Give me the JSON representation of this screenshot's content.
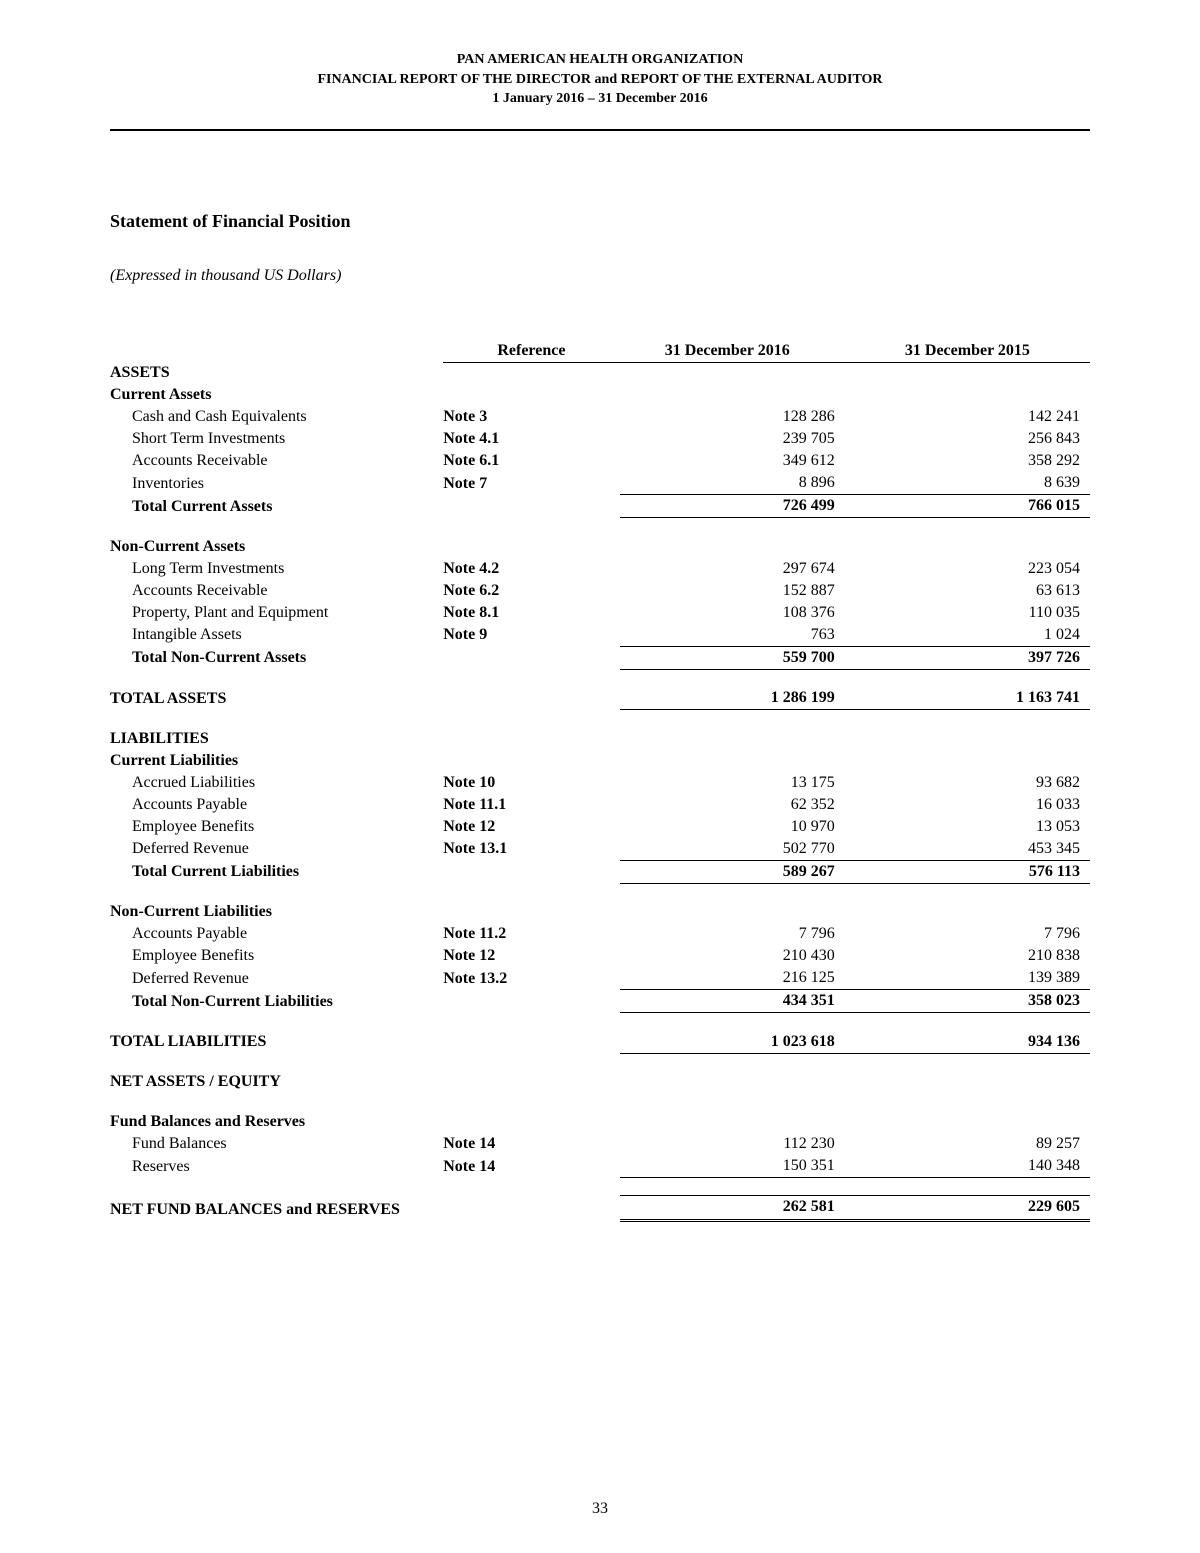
{
  "header": {
    "line1": "PAN AMERICAN HEALTH ORGANIZATION",
    "line2": "FINANCIAL REPORT OF THE DIRECTOR and REPORT OF THE EXTERNAL AUDITOR",
    "line3": "1 January 2016 – 31 December 2016"
  },
  "title": "Statement of Financial Position",
  "note": "(Expressed in thousand US Dollars)",
  "columns": {
    "reference": "Reference",
    "col1": "31 December 2016",
    "col2": "31 December 2015"
  },
  "rows": [
    {
      "type": "section",
      "label": "ASSETS"
    },
    {
      "type": "section",
      "label": "Current Assets"
    },
    {
      "type": "item",
      "label": "Cash and Cash Equivalents",
      "refBold": true,
      "ref": "Note 3",
      "v1": "128 286",
      "v2": "142 241"
    },
    {
      "type": "item",
      "label": "Short Term Investments",
      "refBold": true,
      "ref": "Note 4.1",
      "v1": "239 705",
      "v2": "256 843"
    },
    {
      "type": "item",
      "label": "Accounts Receivable",
      "refBold": true,
      "ref": "Note 6.1",
      "v1": "349 612",
      "v2": "358 292"
    },
    {
      "type": "item",
      "label": "Inventories",
      "refBold": true,
      "ref": "Note 7",
      "v1": "8 896",
      "v2": "8 639",
      "underline": "bottom"
    },
    {
      "type": "subtotal",
      "label": "Total Current Assets",
      "v1": "726 499",
      "v2": "766 015",
      "bold": true,
      "underline": "bottom"
    },
    {
      "type": "spacer"
    },
    {
      "type": "section",
      "label": "Non-Current Assets"
    },
    {
      "type": "item",
      "label": "Long Term Investments",
      "refBold": true,
      "ref": "Note 4.2",
      "v1": "297 674",
      "v2": "223 054"
    },
    {
      "type": "item",
      "label": "Accounts Receivable",
      "refBold": true,
      "ref": "Note 6.2",
      "v1": "152 887",
      "v2": "63 613"
    },
    {
      "type": "item",
      "label": "Property, Plant and Equipment",
      "refBold": true,
      "ref": "Note 8.1",
      "v1": "108 376",
      "v2": "110 035"
    },
    {
      "type": "item",
      "label": "Intangible Assets",
      "refBold": true,
      "ref": "Note 9",
      "v1": " 763",
      "v2": "1 024",
      "underline": "bottom"
    },
    {
      "type": "subtotal",
      "label": "Total Non-Current Assets",
      "v1": "559 700",
      "v2": "397 726",
      "bold": true,
      "underline": "bottom"
    },
    {
      "type": "spacer"
    },
    {
      "type": "total",
      "label": "TOTAL ASSETS",
      "v1": "1 286 199",
      "v2": "1 163 741",
      "bold": true,
      "underline": "both"
    },
    {
      "type": "spacer"
    },
    {
      "type": "section",
      "label": "LIABILITIES"
    },
    {
      "type": "section",
      "label": "Current Liabilities"
    },
    {
      "type": "item",
      "label": "Accrued Liabilities",
      "refBold": true,
      "ref": "Note 10",
      "v1": "13 175",
      "v2": "93 682"
    },
    {
      "type": "item",
      "label": "Accounts Payable",
      "refBold": true,
      "ref": "Note 11.1",
      "v1": "62 352",
      "v2": "16 033"
    },
    {
      "type": "item",
      "label": "Employee Benefits",
      "refBold": true,
      "ref": "Note 12",
      "v1": "10 970",
      "v2": "13 053"
    },
    {
      "type": "item",
      "label": "Deferred Revenue",
      "refBold": true,
      "ref": "Note 13.1",
      "v1": "502 770",
      "v2": "453 345",
      "underline": "bottom"
    },
    {
      "type": "subtotal",
      "label": "Total Current Liabilities",
      "v1": "589 267",
      "v2": "576 113",
      "bold": true,
      "underline": "bottom"
    },
    {
      "type": "spacer"
    },
    {
      "type": "section",
      "label": "Non-Current Liabilities"
    },
    {
      "type": "item",
      "label": "Accounts Payable",
      "refBold": true,
      "ref": "Note 11.2",
      "v1": "7 796",
      "v2": "7 796"
    },
    {
      "type": "item",
      "label": "Employee Benefits",
      "refBold": true,
      "ref": "Note 12",
      "v1": "210 430",
      "v2": "210 838"
    },
    {
      "type": "item",
      "label": "Deferred Revenue",
      "refBold": true,
      "ref": "Note 13.2",
      "v1": "216 125",
      "v2": "139 389",
      "underline": "bottom"
    },
    {
      "type": "subtotal",
      "label": "Total Non-Current Liabilities",
      "v1": "434 351",
      "v2": "358 023",
      "bold": true,
      "underline": "bottom"
    },
    {
      "type": "spacer"
    },
    {
      "type": "total",
      "label": "TOTAL LIABILITIES",
      "v1": "1 023 618",
      "v2": "934 136",
      "bold": true,
      "underline": "both"
    },
    {
      "type": "spacer"
    },
    {
      "type": "section",
      "label": "NET ASSETS / EQUITY"
    },
    {
      "type": "spacer"
    },
    {
      "type": "section",
      "label": "Fund Balances and Reserves"
    },
    {
      "type": "item",
      "label": "Fund Balances",
      "refBold": true,
      "ref": "Note 14",
      "v1": "112 230",
      "v2": "89 257"
    },
    {
      "type": "item",
      "label": "Reserves",
      "refBold": true,
      "ref": "Note 14",
      "v1": "150 351",
      "v2": "140 348",
      "underline": "bottom"
    },
    {
      "type": "spacer"
    },
    {
      "type": "grandtotal",
      "label": "NET FUND BALANCES and RESERVES",
      "v1": "262 581",
      "v2": "229 605",
      "bold": true
    }
  ],
  "pageNumber": "33"
}
